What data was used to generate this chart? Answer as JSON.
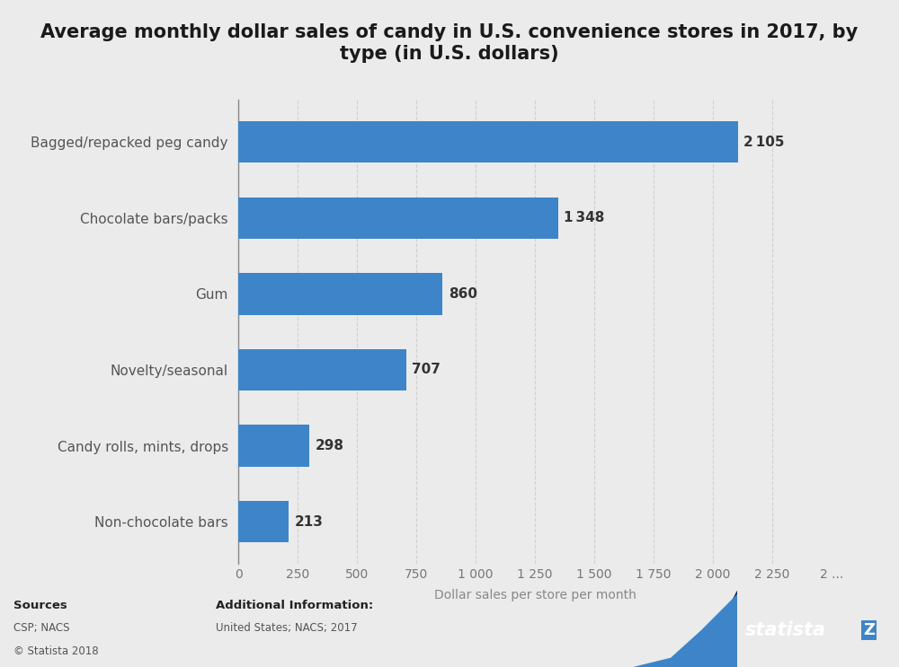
{
  "title_line1": "Average monthly dollar sales of candy in U.S. convenience stores in 2017, by",
  "title_line2": "type (in U.S. dollars)",
  "categories": [
    "Non-chocolate bars",
    "Candy rolls, mints, drops",
    "Novelty/seasonal",
    "Gum",
    "Chocolate bars/packs",
    "Bagged/repacked peg candy"
  ],
  "values": [
    213,
    298,
    707,
    860,
    1348,
    2105
  ],
  "bar_color": "#3d85c8",
  "background_color": "#ebebeb",
  "plot_bg_color": "#ebebeb",
  "xlabel": "Dollar sales per store per month",
  "xlim": [
    0,
    2500
  ],
  "xticks": [
    0,
    250,
    500,
    750,
    1000,
    1250,
    1500,
    1750,
    2000,
    2250,
    2500
  ],
  "xtick_labels": [
    "0",
    "250",
    "500",
    "750",
    "1 000",
    "1 250",
    "1 500",
    "1 750",
    "2 000",
    "2 250",
    "2 ..."
  ],
  "title_fontsize": 15,
  "label_fontsize": 11,
  "tick_fontsize": 10,
  "value_fontsize": 11,
  "footer_bg_color": "#ebebeb",
  "statista_bg_color": "#1c2b40",
  "statista_blue": "#3d85c8",
  "grid_color": "#d0d0d0"
}
